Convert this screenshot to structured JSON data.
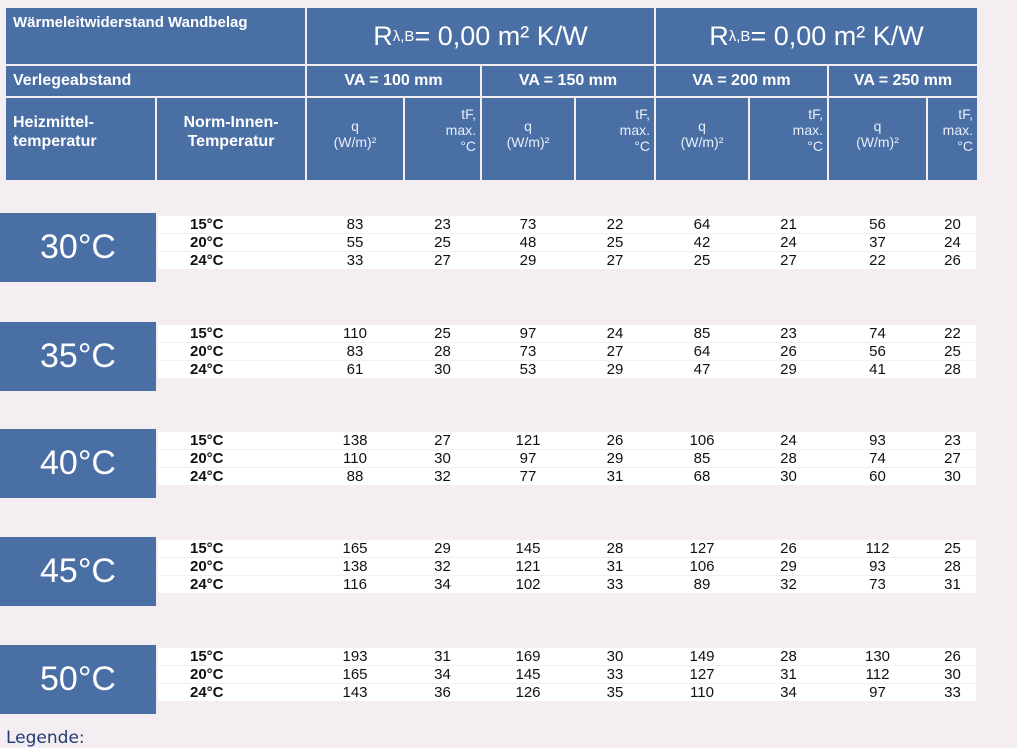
{
  "header": {
    "title": "Wärmeleitwiderstand Wandbelag",
    "r_left": {
      "prefix": "R",
      "sub": "λ,B",
      "value": " = 0,00 m² K/W"
    },
    "r_right": {
      "prefix": "R",
      "sub": "λ,B",
      "value": " = 0,00 m² K/W"
    },
    "verlegeabstand": "Verlegeabstand",
    "va": [
      "VA = 100 mm",
      "VA = 150 mm",
      "VA = 200 mm",
      "VA = 250 mm"
    ],
    "heizmittel": "Heizmittel-temperatur",
    "norm_innen": "Norm-Innen-Temperatur",
    "q_label": "q",
    "q_unit": "(W/m)²",
    "tf_label": "tF,",
    "tf_max": "max.",
    "tf_unit": "°C"
  },
  "groups": [
    {
      "temp": "30°C",
      "rows": [
        {
          "norm": "15°C",
          "v": [
            "83",
            "23",
            "73",
            "22",
            "64",
            "21",
            "56",
            "20"
          ]
        },
        {
          "norm": "20°C",
          "v": [
            "55",
            "25",
            "48",
            "25",
            "42",
            "24",
            "37",
            "24"
          ]
        },
        {
          "norm": "24°C",
          "v": [
            "33",
            "27",
            "29",
            "27",
            "25",
            "27",
            "22",
            "26"
          ]
        }
      ]
    },
    {
      "temp": "35°C",
      "rows": [
        {
          "norm": "15°C",
          "v": [
            "110",
            "25",
            "97",
            "24",
            "85",
            "23",
            "74",
            "22"
          ]
        },
        {
          "norm": "20°C",
          "v": [
            "83",
            "28",
            "73",
            "27",
            "64",
            "26",
            "56",
            "25"
          ]
        },
        {
          "norm": "24°C",
          "v": [
            "61",
            "30",
            "53",
            "29",
            "47",
            "29",
            "41",
            "28"
          ]
        }
      ]
    },
    {
      "temp": "40°C",
      "rows": [
        {
          "norm": "15°C",
          "v": [
            "138",
            "27",
            "121",
            "26",
            "106",
            "24",
            "93",
            "23"
          ]
        },
        {
          "norm": "20°C",
          "v": [
            "110",
            "30",
            "97",
            "29",
            "85",
            "28",
            "74",
            "27"
          ]
        },
        {
          "norm": "24°C",
          "v": [
            "88",
            "32",
            "77",
            "31",
            "68",
            "30",
            "60",
            "30"
          ]
        }
      ]
    },
    {
      "temp": "45°C",
      "rows": [
        {
          "norm": "15°C",
          "v": [
            "165",
            "29",
            "145",
            "28",
            "127",
            "26",
            "112",
            "25"
          ]
        },
        {
          "norm": "20°C",
          "v": [
            "138",
            "32",
            "121",
            "31",
            "106",
            "29",
            "93",
            "28"
          ]
        },
        {
          "norm": "24°C",
          "v": [
            "116",
            "34",
            "102",
            "33",
            "89",
            "32",
            "73",
            "31"
          ]
        }
      ]
    },
    {
      "temp": "50°C",
      "rows": [
        {
          "norm": "15°C",
          "v": [
            "193",
            "31",
            "169",
            "30",
            "149",
            "28",
            "130",
            "26"
          ]
        },
        {
          "norm": "20°C",
          "v": [
            "165",
            "34",
            "145",
            "33",
            "127",
            "31",
            "112",
            "30"
          ]
        },
        {
          "norm": "24°C",
          "v": [
            "143",
            "36",
            "126",
            "35",
            "110",
            "34",
            "97",
            "33"
          ]
        }
      ]
    }
  ],
  "legend": "Legende:"
}
